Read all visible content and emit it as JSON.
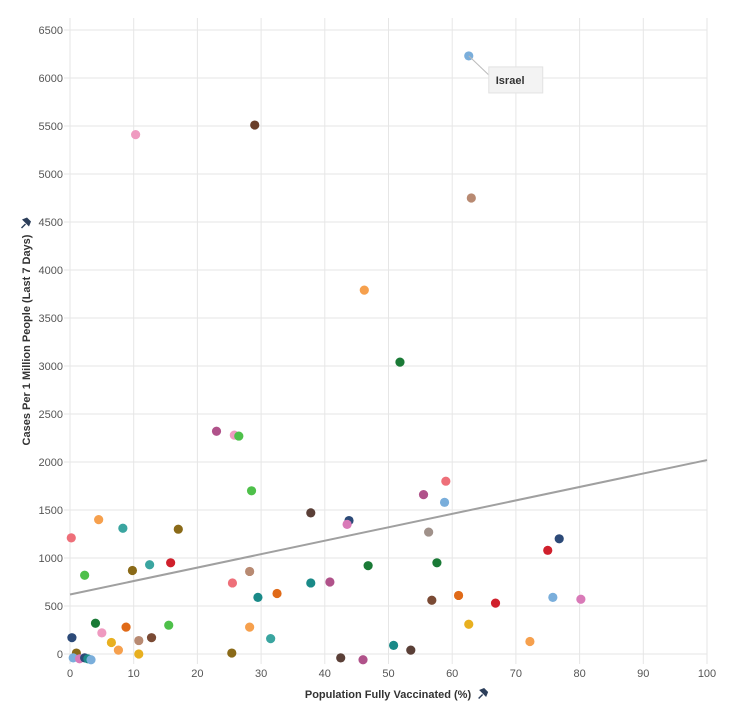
{
  "chart_data": {
    "type": "scatter",
    "xlabel": "Population Fully Vaccinated (%)",
    "ylabel": "Cases Per 1 Million People (Last 7 Days)",
    "xlim": [
      0,
      100
    ],
    "ylim": [
      0,
      6500
    ],
    "x_ticks": [
      0,
      10,
      20,
      30,
      40,
      50,
      60,
      70,
      80,
      90,
      100
    ],
    "y_ticks": [
      0,
      500,
      1000,
      1500,
      2000,
      2500,
      3000,
      3500,
      4000,
      4500,
      5000,
      5500,
      6000,
      6500
    ],
    "grid": true,
    "axis_pin_icon": "pin-icon",
    "trend_line": {
      "x": [
        0,
        100
      ],
      "y": [
        620,
        2020
      ],
      "color": "#a0a0a0"
    },
    "annotations": [
      {
        "label": "Israel",
        "x": 62.6,
        "y": 6230
      }
    ],
    "points": [
      {
        "x": 62.6,
        "y": 6230,
        "color": "#7aaedb"
      },
      {
        "x": 10.3,
        "y": 5410,
        "color": "#ef9ac0"
      },
      {
        "x": 29.0,
        "y": 5510,
        "color": "#6b3f2a"
      },
      {
        "x": 63.0,
        "y": 4750,
        "color": "#b88a72"
      },
      {
        "x": 46.2,
        "y": 3790,
        "color": "#f6a04d"
      },
      {
        "x": 51.8,
        "y": 3040,
        "color": "#1a7a36"
      },
      {
        "x": 23.0,
        "y": 2320,
        "color": "#b0528a"
      },
      {
        "x": 25.8,
        "y": 2280,
        "color": "#ef9ac0"
      },
      {
        "x": 26.5,
        "y": 2270,
        "color": "#4ec04a"
      },
      {
        "x": 28.5,
        "y": 1700,
        "color": "#4ec04a"
      },
      {
        "x": 59.0,
        "y": 1800,
        "color": "#ee6f79"
      },
      {
        "x": 55.5,
        "y": 1660,
        "color": "#b0528a"
      },
      {
        "x": 58.8,
        "y": 1580,
        "color": "#7aaedb"
      },
      {
        "x": 37.8,
        "y": 1470,
        "color": "#5a3f37"
      },
      {
        "x": 43.8,
        "y": 1390,
        "color": "#2c4a78"
      },
      {
        "x": 43.5,
        "y": 1350,
        "color": "#d97ab8"
      },
      {
        "x": 56.3,
        "y": 1270,
        "color": "#a0918a"
      },
      {
        "x": 76.8,
        "y": 1200,
        "color": "#2c4a78"
      },
      {
        "x": 75.0,
        "y": 1080,
        "color": "#d0202c"
      },
      {
        "x": 0.2,
        "y": 1210,
        "color": "#ee6f79"
      },
      {
        "x": 4.5,
        "y": 1400,
        "color": "#f6a04d"
      },
      {
        "x": 8.3,
        "y": 1310,
        "color": "#3aa5a0"
      },
      {
        "x": 17.0,
        "y": 1300,
        "color": "#8a6a18"
      },
      {
        "x": 2.3,
        "y": 820,
        "color": "#4ec04a"
      },
      {
        "x": 9.8,
        "y": 870,
        "color": "#8a6a18"
      },
      {
        "x": 12.5,
        "y": 930,
        "color": "#3aa5a0"
      },
      {
        "x": 15.8,
        "y": 950,
        "color": "#d0202c"
      },
      {
        "x": 25.5,
        "y": 740,
        "color": "#ee6f79"
      },
      {
        "x": 28.2,
        "y": 860,
        "color": "#b88a72"
      },
      {
        "x": 37.8,
        "y": 740,
        "color": "#1a8a88"
      },
      {
        "x": 40.8,
        "y": 750,
        "color": "#b0528a"
      },
      {
        "x": 46.8,
        "y": 920,
        "color": "#1a7a36"
      },
      {
        "x": 57.6,
        "y": 950,
        "color": "#1a7a36"
      },
      {
        "x": 29.5,
        "y": 590,
        "color": "#1a8a88"
      },
      {
        "x": 32.5,
        "y": 630,
        "color": "#e06a18"
      },
      {
        "x": 56.8,
        "y": 560,
        "color": "#7a4a34"
      },
      {
        "x": 61.0,
        "y": 610,
        "color": "#e06a18"
      },
      {
        "x": 66.8,
        "y": 530,
        "color": "#d0202c"
      },
      {
        "x": 75.8,
        "y": 590,
        "color": "#7aaedb"
      },
      {
        "x": 80.2,
        "y": 570,
        "color": "#d97ab8"
      },
      {
        "x": 4.0,
        "y": 320,
        "color": "#1a7a36"
      },
      {
        "x": 5.0,
        "y": 220,
        "color": "#ef9ac0"
      },
      {
        "x": 6.5,
        "y": 120,
        "color": "#e8b020"
      },
      {
        "x": 8.8,
        "y": 280,
        "color": "#e06a18"
      },
      {
        "x": 10.8,
        "y": 140,
        "color": "#b88a72"
      },
      {
        "x": 12.8,
        "y": 170,
        "color": "#7a4a34"
      },
      {
        "x": 15.5,
        "y": 300,
        "color": "#4ec04a"
      },
      {
        "x": 28.2,
        "y": 280,
        "color": "#f6a04d"
      },
      {
        "x": 31.5,
        "y": 160,
        "color": "#3aa5a0"
      },
      {
        "x": 50.8,
        "y": 90,
        "color": "#1a8a88"
      },
      {
        "x": 53.5,
        "y": 40,
        "color": "#5a3f37"
      },
      {
        "x": 62.6,
        "y": 310,
        "color": "#e8b020"
      },
      {
        "x": 72.2,
        "y": 130,
        "color": "#f6a04d"
      },
      {
        "x": 0.3,
        "y": 170,
        "color": "#2c4a78"
      },
      {
        "x": 1.0,
        "y": 10,
        "color": "#8a6a18"
      },
      {
        "x": 0.5,
        "y": -40,
        "color": "#7aaedb"
      },
      {
        "x": 1.5,
        "y": -50,
        "color": "#d97ab8"
      },
      {
        "x": 2.3,
        "y": -40,
        "color": "#2c4a78"
      },
      {
        "x": 2.8,
        "y": -50,
        "color": "#1a8a88"
      },
      {
        "x": 3.3,
        "y": -60,
        "color": "#7aaedb"
      },
      {
        "x": 7.6,
        "y": 40,
        "color": "#f6a04d"
      },
      {
        "x": 10.8,
        "y": 0,
        "color": "#e8b020"
      },
      {
        "x": 25.4,
        "y": 10,
        "color": "#8a6a18"
      },
      {
        "x": 42.5,
        "y": -40,
        "color": "#5a3f37"
      },
      {
        "x": 46.0,
        "y": -60,
        "color": "#b0528a"
      }
    ]
  }
}
